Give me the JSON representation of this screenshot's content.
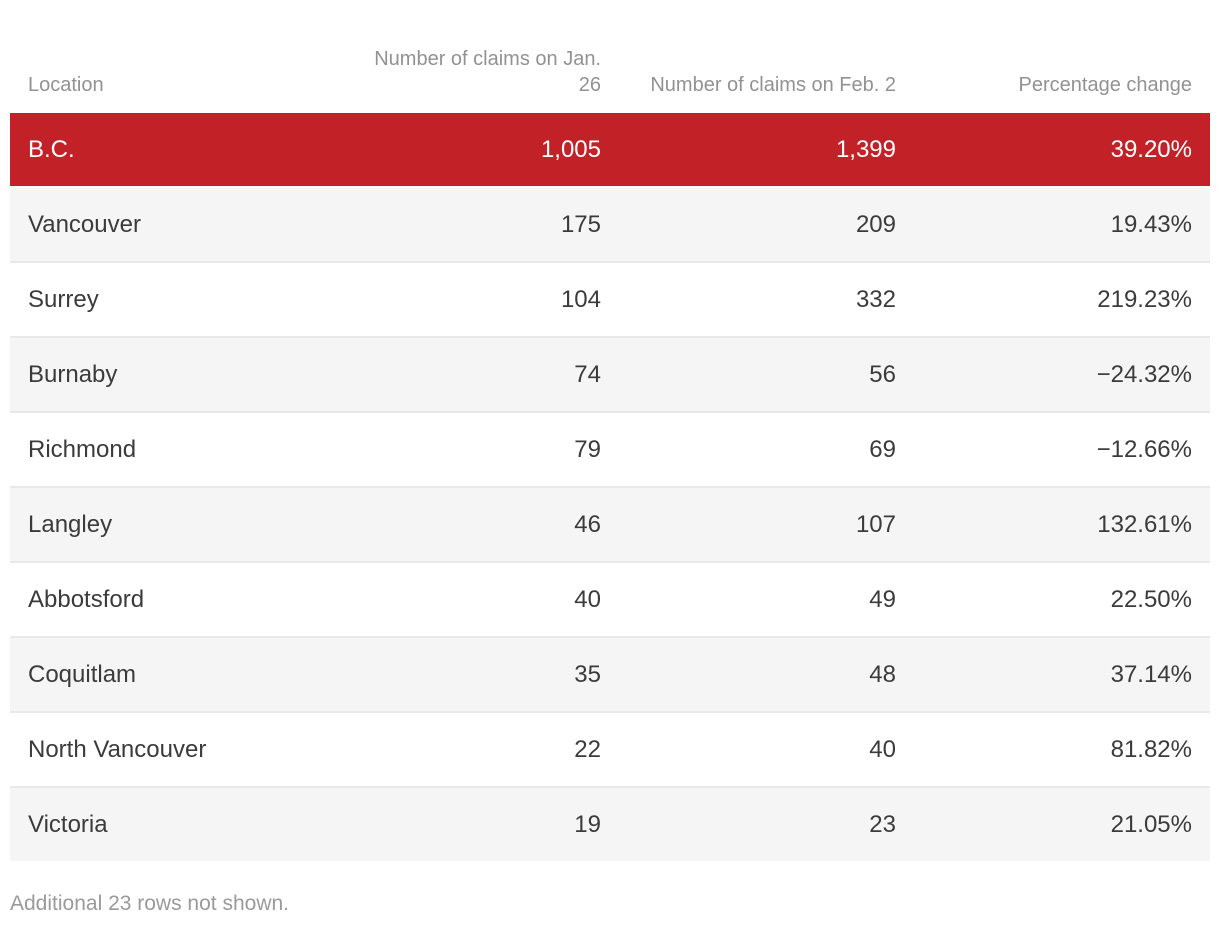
{
  "chart_data": {
    "type": "table",
    "columns": [
      "Location",
      "Number of claims on Jan. 26",
      "Number of claims on Feb. 2",
      "Percentage change"
    ],
    "rows": [
      [
        "B.C.",
        "1,005",
        "1,399",
        "39.20%"
      ],
      [
        "Vancouver",
        "175",
        "209",
        "19.43%"
      ],
      [
        "Surrey",
        "104",
        "332",
        "219.23%"
      ],
      [
        "Burnaby",
        "74",
        "56",
        "−24.32%"
      ],
      [
        "Richmond",
        "79",
        "69",
        "−12.66%"
      ],
      [
        "Langley",
        "46",
        "107",
        "132.61%"
      ],
      [
        "Abbotsford",
        "40",
        "49",
        "22.50%"
      ],
      [
        "Coquitlam",
        "35",
        "48",
        "37.14%"
      ],
      [
        "North Vancouver",
        "22",
        "40",
        "81.82%"
      ],
      [
        "Victoria",
        "19",
        "23",
        "21.05%"
      ]
    ],
    "rows_numeric": [
      {
        "location": "B.C.",
        "jan26": 1005,
        "feb2": 1399,
        "pct_change": 39.2
      },
      {
        "location": "Vancouver",
        "jan26": 175,
        "feb2": 209,
        "pct_change": 19.43
      },
      {
        "location": "Surrey",
        "jan26": 104,
        "feb2": 332,
        "pct_change": 219.23
      },
      {
        "location": "Burnaby",
        "jan26": 74,
        "feb2": 56,
        "pct_change": -24.32
      },
      {
        "location": "Richmond",
        "jan26": 79,
        "feb2": 69,
        "pct_change": -12.66
      },
      {
        "location": "Langley",
        "jan26": 46,
        "feb2": 107,
        "pct_change": 132.61
      },
      {
        "location": "Abbotsford",
        "jan26": 40,
        "feb2": 49,
        "pct_change": 22.5
      },
      {
        "location": "Coquitlam",
        "jan26": 35,
        "feb2": 48,
        "pct_change": 37.14
      },
      {
        "location": "North Vancouver",
        "jan26": 22,
        "feb2": 40,
        "pct_change": 81.82
      },
      {
        "location": "Victoria",
        "jan26": 19,
        "feb2": 23,
        "pct_change": 21.05
      }
    ],
    "highlight_row_index": 0,
    "footnote": "Additional 23 rows not shown."
  },
  "colors": {
    "highlight_row_bg": "#c22127",
    "highlight_row_text": "#ffffff",
    "alt_row_bg": "#f5f5f6",
    "row_border": "#e9e9e9",
    "header_text": "#929292",
    "body_text": "#3b3b3b",
    "footnote_text": "#9a9a9a"
  }
}
